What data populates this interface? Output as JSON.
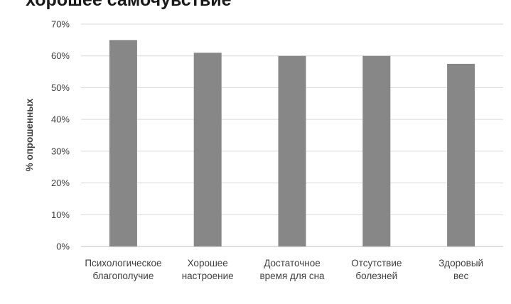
{
  "chart_data": {
    "type": "bar",
    "title": "хорошее самочувствие",
    "ylabel": "% опрошенных",
    "xlabel": "",
    "ylim": [
      0,
      70
    ],
    "yticks": [
      "0%",
      "10%",
      "20%",
      "30%",
      "40%",
      "50%",
      "60%",
      "70%"
    ],
    "grid": true,
    "categories": [
      [
        "Психологическое",
        "благополучие"
      ],
      [
        "Хорошее",
        "настроение"
      ],
      [
        "Достаточное",
        "время для сна"
      ],
      [
        "Отсутствие",
        "болезней"
      ],
      [
        "Здоровый",
        "вес"
      ]
    ],
    "values": [
      65,
      61,
      60,
      60,
      57.5
    ],
    "colors": {
      "bar": "#878787",
      "grid": "#d9d9d9",
      "axis": "#bfbfbf"
    }
  }
}
